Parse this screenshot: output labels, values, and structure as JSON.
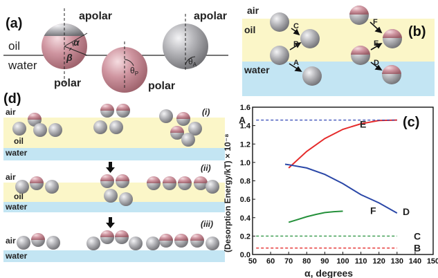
{
  "colors": {
    "oil": "#fbf6c8",
    "water": "#c3e5f3",
    "polar": "#c98b95",
    "apolar": "#a9a9ad",
    "series_E": "#e52b2b",
    "series_D": "#2a47a7",
    "series_F": "#24903a",
    "series_A": "#2f44b5",
    "series_C": "#24903a",
    "series_B": "#e52b2b"
  },
  "panel_a": {
    "label": "(a)",
    "oil": "oil",
    "water": "water",
    "apolar_1": "apolar",
    "apolar_2": "apolar",
    "polar_1": "polar",
    "polar_2": "polar",
    "alpha": "α",
    "beta": "β",
    "theta_p": "θ",
    "theta_p_sub": "P",
    "theta_a": "θ",
    "theta_a_sub": "A"
  },
  "panel_b": {
    "label": "(b)",
    "air": "air",
    "oil": "oil",
    "water": "water",
    "arrows": [
      "C",
      "B",
      "A",
      "F",
      "E",
      "D"
    ]
  },
  "panel_d": {
    "label": "(d)",
    "rows": [
      {
        "tag": "(i)",
        "air": "air",
        "oil": "oil",
        "water": "water"
      },
      {
        "tag": "(ii)",
        "air": "air",
        "oil": "oil",
        "water": "water"
      },
      {
        "tag": "(iii)",
        "air": "air",
        "water": "water"
      }
    ]
  },
  "chart_data": {
    "type": "line",
    "label": "(c)",
    "xlabel": "α, degrees",
    "ylabel": "(Desorption Energy/kT) × 10⁻⁸",
    "xlim": [
      50,
      150
    ],
    "ylim": [
      0,
      1.6
    ],
    "xticks": [
      50,
      60,
      70,
      80,
      90,
      100,
      110,
      120,
      130,
      140,
      150
    ],
    "yticks": [
      0.0,
      0.2,
      0.4,
      0.6,
      0.8,
      1.0,
      1.2,
      1.4,
      1.6
    ],
    "series": [
      {
        "name": "E",
        "style": "solid",
        "x": [
          70,
          80,
          90,
          100,
          110,
          120,
          130
        ],
        "y": [
          0.94,
          1.12,
          1.26,
          1.36,
          1.42,
          1.455,
          1.46
        ]
      },
      {
        "name": "D",
        "style": "solid",
        "x": [
          68,
          70,
          80,
          90,
          100,
          110,
          120,
          130
        ],
        "y": [
          0.98,
          0.975,
          0.94,
          0.87,
          0.77,
          0.65,
          0.56,
          0.45
        ]
      },
      {
        "name": "F",
        "style": "solid",
        "x": [
          70,
          75,
          80,
          85,
          90,
          95,
          100
        ],
        "y": [
          0.35,
          0.38,
          0.41,
          0.435,
          0.455,
          0.465,
          0.47
        ]
      },
      {
        "name": "A",
        "style": "dashed",
        "x": [
          52,
          130
        ],
        "y": [
          1.46,
          1.46
        ]
      },
      {
        "name": "C",
        "style": "dashed",
        "x": [
          52,
          130
        ],
        "y": [
          0.2,
          0.2
        ]
      },
      {
        "name": "B",
        "style": "dashed",
        "x": [
          52,
          130
        ],
        "y": [
          0.07,
          0.07
        ]
      }
    ]
  }
}
